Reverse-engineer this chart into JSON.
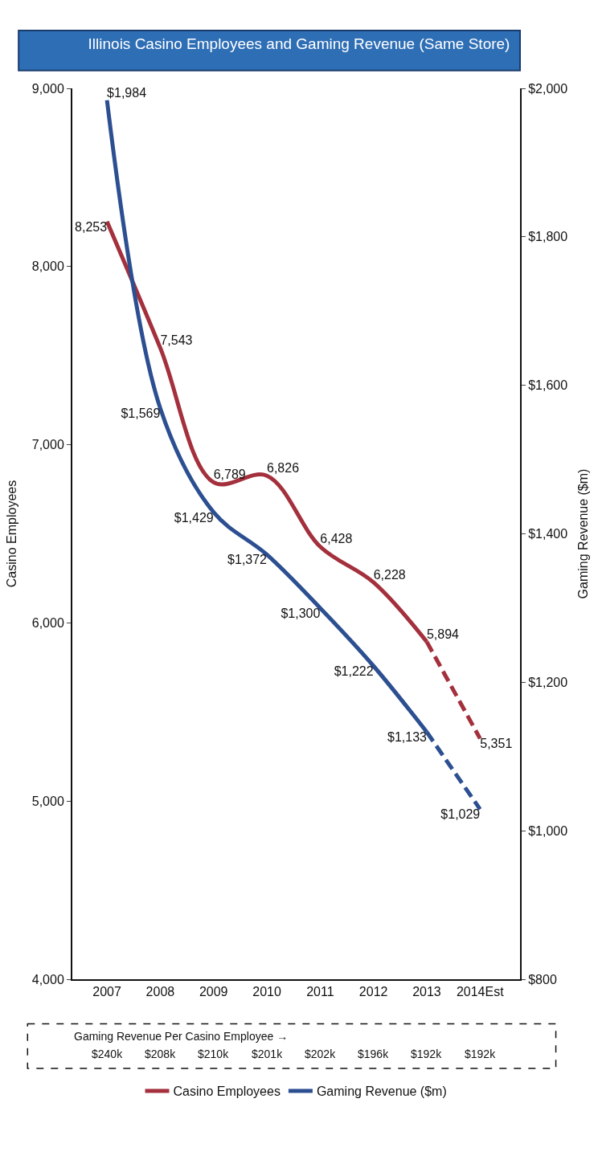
{
  "chart_data": {
    "type": "line",
    "title": "Illinois Casino Employees and Gaming Revenue (Same Store)",
    "ylabel": "Casino Employees",
    "y2label": "Gaming Revenue ($m)",
    "categories": [
      "2007",
      "2008",
      "2009",
      "2010",
      "2011",
      "2012",
      "2013",
      "2014Est"
    ],
    "series": [
      {
        "name": "Casino Employees",
        "color": "#a3303c",
        "values": [
          8253,
          7543,
          6789,
          6826,
          6428,
          6228,
          5894,
          null
        ],
        "value_labels": [
          "8,253",
          "7,543",
          "6,789",
          "6,826",
          "6,428",
          "6,228",
          "5,894",
          null
        ],
        "line_style": "solid"
      },
      {
        "color": "#a3303c",
        "values": [
          null,
          null,
          null,
          null,
          null,
          null,
          5894,
          5351
        ],
        "value_labels": [
          null,
          null,
          null,
          null,
          null,
          null,
          null,
          "5,351"
        ],
        "line_style": "dashed"
      },
      {
        "name": "Gaming Revenue ($m)",
        "color": "#2c4f91",
        "axis": "y2",
        "values": [
          1984,
          1569,
          1429,
          1372,
          1300,
          1222,
          1133,
          null
        ],
        "value_labels": [
          "$1,984",
          "$1,569",
          "$1,429",
          "$1,372",
          "$1,300",
          "$1,222",
          "$1,133",
          null
        ],
        "line_style": "solid"
      },
      {
        "color": "#2c4f91",
        "axis": "y2",
        "values": [
          null,
          null,
          null,
          null,
          null,
          null,
          1133,
          1029
        ],
        "value_labels": [
          null,
          null,
          null,
          null,
          null,
          null,
          null,
          "$1,029"
        ],
        "line_style": "dashed"
      }
    ],
    "ylim": [
      4000,
      9000
    ],
    "yticks": [
      {
        "value": 4000,
        "label": "4,000"
      },
      {
        "value": 5000,
        "label": "5,000"
      },
      {
        "value": 6000,
        "label": "6,000"
      },
      {
        "value": 7000,
        "label": "7,000"
      },
      {
        "value": 8000,
        "label": "8,000"
      },
      {
        "value": 9000,
        "label": "9,000"
      }
    ],
    "y2lim": [
      800,
      2000
    ],
    "y2ticks": [
      {
        "value": 800,
        "label": "$800"
      },
      {
        "value": 1000,
        "label": "$1,000"
      },
      {
        "value": 1200,
        "label": "$1,200"
      },
      {
        "value": 1400,
        "label": "$1,400"
      },
      {
        "value": 1600,
        "label": "$1,600"
      },
      {
        "value": 1800,
        "label": "$1,800"
      },
      {
        "value": 2000,
        "label": "$2,000"
      }
    ],
    "annotations": [
      "Gaming Revenue Per Casino Employee →",
      "$240k",
      "$208k",
      "$210k",
      "$201k",
      "$202k",
      "$196k",
      "$192k",
      "$192k"
    ],
    "legend": "bottom",
    "marker": "none"
  }
}
